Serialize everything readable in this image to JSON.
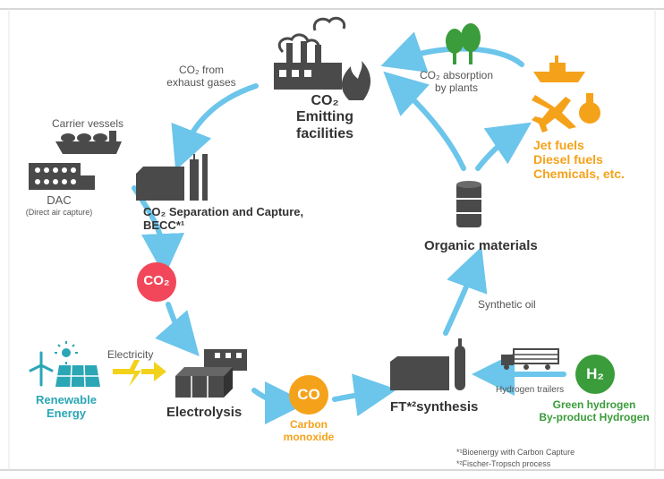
{
  "diagram": {
    "emitting": {
      "line1": "CO₂",
      "line2": "Emitting",
      "line3": "facilities"
    },
    "co2_from": {
      "line1": "CO₂ from",
      "line2": "exhaust gases"
    },
    "carrier_vessels": "Carrier vessels",
    "dac": {
      "title": "DAC",
      "subtitle": "(Direct air capture)"
    },
    "separation": {
      "line1": "CO₂ Separation and Capture,",
      "line2": "BECC*¹"
    },
    "co2_circle": "CO₂",
    "absorption": {
      "line1": "CO₂ absorption",
      "line2": "by plants"
    },
    "fuels": {
      "line1": "Jet fuels",
      "line2": "Diesel fuels",
      "line3": "Chemicals, etc."
    },
    "organic": "Organic materials",
    "synthetic_oil": "Synthetic oil",
    "renewable": {
      "line1": "Renewable",
      "line2": "Energy"
    },
    "electricity": "Electricity",
    "electrolysis": "Electrolysis",
    "co_circle": "CO",
    "carbon_monoxide": {
      "line1": "Carbon",
      "line2": "monoxide"
    },
    "ft_synthesis": "FT*²synthesis",
    "hydrogen_trailers": "Hydrogen trailers",
    "h2_circle": "H₂",
    "green_hydrogen": {
      "line1": "Green hydrogen",
      "line2": "By-product Hydrogen"
    },
    "footnote1": "*¹Bioenergy with Carbon Capture",
    "footnote2": "*²Fischer-Tropsch process"
  },
  "colors": {
    "arrow_blue": "#6cc5ea",
    "icon_gray": "#4a4a4a",
    "orange": "#f5a21b",
    "teal": "#2aa6b5",
    "green": "#3a9c3a",
    "red_circle": "#f2475a",
    "yellow_bolt": "#f2d21b"
  }
}
